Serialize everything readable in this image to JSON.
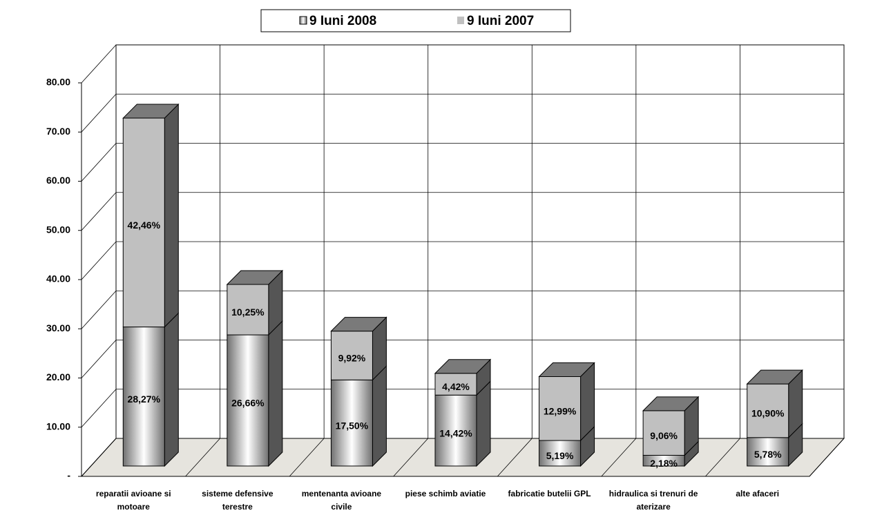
{
  "chart_data": {
    "type": "bar3d_stacked",
    "categories": [
      "reparatii avioane si motoare",
      "sisteme defensive terestre",
      "mentenanta avioane civile",
      "piese schimb aviatie",
      "fabricatie butelii GPL",
      "hidraulica si trenuri de aterizare",
      "alte afaceri"
    ],
    "series": [
      {
        "name": "9 Iuni 2008",
        "color": "#707070",
        "values": [
          28.27,
          26.66,
          17.5,
          14.42,
          5.19,
          2.18,
          5.78
        ],
        "value_labels": [
          "28,27%",
          "26,66%",
          "17,50%",
          "14,42%",
          "5,19%",
          "2,18%",
          "5,78%"
        ]
      },
      {
        "name": "9 Iuni 2007",
        "color": "#c0c0c0",
        "values": [
          42.46,
          10.25,
          9.92,
          4.42,
          12.99,
          9.06,
          10.9
        ],
        "value_labels": [
          "42,46%",
          "10,25%",
          "9,92%",
          "4,42%",
          "12,99%",
          "9,06%",
          "10,90%"
        ]
      }
    ],
    "ylim": [
      0,
      80
    ],
    "yticks": [
      {
        "value": 0,
        "label": "-"
      },
      {
        "value": 10,
        "label": "10.00"
      },
      {
        "value": 20,
        "label": "20.00"
      },
      {
        "value": 30,
        "label": "30.00"
      },
      {
        "value": 40,
        "label": "40.00"
      },
      {
        "value": 50,
        "label": "50.00"
      },
      {
        "value": 60,
        "label": "60.00"
      },
      {
        "value": 70,
        "label": "70.00"
      },
      {
        "value": 80,
        "label": "80.00"
      }
    ],
    "grid": true,
    "legend": "top"
  }
}
